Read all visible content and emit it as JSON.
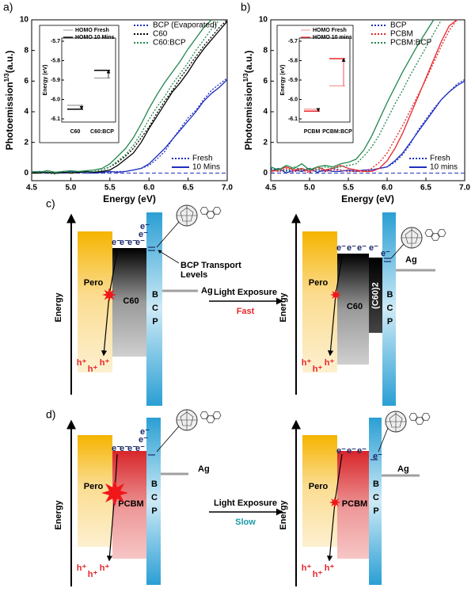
{
  "chart_data": [
    {
      "type": "line",
      "panel": "a)",
      "xlabel": "Energy (eV)",
      "ylabel": "Photoemission",
      "ylabel_sup": "1/3",
      "ylabel_unit": "(a.u.)",
      "x": [
        4.5,
        4.6,
        4.7,
        4.8,
        4.9,
        5.0,
        5.1,
        5.2,
        5.3,
        5.4,
        5.5,
        5.6,
        5.7,
        5.8,
        5.9,
        6.0,
        6.1,
        6.2,
        6.3,
        6.4,
        6.5,
        6.6,
        6.7,
        6.8,
        6.9,
        7.0
      ],
      "xlim": [
        4.5,
        7.0
      ],
      "xticks": [
        4.5,
        {
          "value": 5,
          "label": "5.0"
        },
        5.5,
        {
          "value": 6,
          "label": "6.0"
        },
        6.5,
        {
          "value": 7,
          "label": "7.0"
        }
      ],
      "ylim": [
        -0.5,
        10
      ],
      "yticks": [
        0,
        2,
        4,
        6,
        8,
        10
      ],
      "hline": 0,
      "hline_color": "#1f2fbf",
      "line_styles": {
        "fresh": {
          "label": "Fresh",
          "dash": "2 2"
        },
        "aged": {
          "label": "10 Mins",
          "dash": "none"
        }
      },
      "series": [
        {
          "name": "BCP (Evaporated)",
          "color": "#1f2fbf",
          "fresh": [
            0.1,
            0.05,
            0.15,
            0,
            0.1,
            0.05,
            0,
            0.1,
            0.05,
            0,
            0.05,
            0.1,
            0.1,
            0.2,
            0.3,
            0.5,
            0.9,
            1.4,
            2.2,
            2.9,
            3.6,
            4.1,
            4.8,
            5.4,
            5.8,
            6.2
          ],
          "aged": [
            0.05,
            0.1,
            0,
            0.05,
            0,
            0.1,
            0.05,
            0,
            0,
            0.05,
            0.1,
            0.05,
            0.1,
            0.2,
            0.3,
            0.6,
            1.1,
            1.6,
            2.2,
            2.8,
            3.4,
            4.0,
            4.7,
            5.2,
            5.6,
            6.1
          ]
        },
        {
          "name": "C60",
          "color": "#000000",
          "fresh": [
            0,
            0.05,
            0,
            -0.05,
            0.05,
            0,
            0.05,
            0.05,
            0.1,
            0.2,
            0.4,
            0.7,
            1.1,
            1.6,
            2.3,
            3.0,
            3.9,
            4.7,
            5.4,
            6.2,
            6.9,
            7.6,
            8.3,
            8.9,
            9.5,
            10
          ],
          "aged": [
            0,
            0,
            0.05,
            0,
            0.05,
            0,
            0.05,
            0.1,
            0.05,
            0.1,
            0.2,
            0.5,
            0.9,
            1.3,
            2.0,
            2.9,
            3.7,
            4.5,
            5.3,
            5.9,
            6.6,
            7.4,
            8.1,
            8.7,
            9.3,
            9.9
          ]
        },
        {
          "name": "C60:BCP",
          "color": "#21874b",
          "fresh": [
            0.05,
            0.1,
            0.05,
            0,
            0.1,
            0.05,
            0.1,
            0.05,
            0.1,
            0.2,
            0.4,
            0.8,
            1.2,
            1.8,
            2.6,
            3.5,
            4.3,
            5.0,
            5.8,
            6.5,
            7.2,
            8.0,
            8.7,
            9.4,
            10,
            null
          ],
          "aged": [
            0.1,
            0.05,
            0.15,
            0.05,
            0.1,
            0.15,
            0.1,
            0.15,
            0.2,
            0.3,
            0.6,
            1.1,
            1.6,
            2.3,
            3.2,
            4.2,
            5.1,
            5.9,
            6.6,
            7.3,
            8.1,
            8.8,
            9.5,
            10,
            null,
            null
          ]
        }
      ],
      "inset": {
        "ylabel": "Energy (eV)",
        "ylim": [
          -6.1,
          -5.7
        ],
        "yticks": [
          -5.7,
          -5.8,
          -5.9,
          {
            "value": -6,
            "label": "-6.0"
          },
          -6.1
        ],
        "categories": [
          "C60",
          "C60:BCP"
        ],
        "series": [
          {
            "name": "HOMO Fresh",
            "color": "#aaaaaa",
            "values": [
              -6.03,
              -5.89
            ]
          },
          {
            "name": "HOMO 10 Mins",
            "color": "#000000",
            "values": [
              -6.05,
              -5.85
            ]
          }
        ]
      }
    },
    {
      "type": "line",
      "panel": "b)",
      "xlabel": "Energy (eV)",
      "ylabel": "Photoemission",
      "ylabel_sup": "1/3",
      "ylabel_unit": "(a.u.)",
      "x": [
        4.5,
        4.6,
        4.7,
        4.8,
        4.9,
        5.0,
        5.1,
        5.2,
        5.3,
        5.4,
        5.5,
        5.6,
        5.7,
        5.8,
        5.9,
        6.0,
        6.1,
        6.2,
        6.3,
        6.4,
        6.5,
        6.6,
        6.7,
        6.8,
        6.9,
        7.0
      ],
      "xlim": [
        4.5,
        7.0
      ],
      "xticks": [
        4.5,
        {
          "value": 5,
          "label": "5.0"
        },
        5.5,
        {
          "value": 6,
          "label": "6.0"
        },
        6.5,
        {
          "value": 7,
          "label": "7.0"
        }
      ],
      "ylim": [
        -0.5,
        10
      ],
      "yticks": [
        0,
        2,
        4,
        6,
        8,
        10
      ],
      "hline": 0,
      "hline_color": "#1f2fbf",
      "line_styles": {
        "fresh": {
          "label": "Fresh",
          "dash": "2 2"
        },
        "aged": {
          "label": "10 mins",
          "dash": "none"
        }
      },
      "series": [
        {
          "name": "BCP",
          "color": "#1f2fbf",
          "fresh": [
            0.3,
            0.1,
            0.2,
            0.05,
            0.3,
            0.1,
            0.2,
            0.1,
            0.3,
            0.2,
            0.1,
            0.2,
            0.1,
            0.2,
            0.3,
            0.4,
            0.7,
            1.2,
            1.9,
            2.8,
            3.5,
            4.2,
            4.8,
            5.3,
            5.8,
            6.1
          ],
          "aged": [
            0.1,
            0.3,
            0,
            0.2,
            0.1,
            0.3,
            0.05,
            0.2,
            0.1,
            0.1,
            0.2,
            0.1,
            0.2,
            0.2,
            0.3,
            0.4,
            0.8,
            1.3,
            2.0,
            2.7,
            3.4,
            4.1,
            4.8,
            5.3,
            5.7,
            6.0
          ]
        },
        {
          "name": "PCBM",
          "color": "#e8262a",
          "fresh": [
            0.2,
            0.1,
            0.3,
            0.1,
            0.2,
            0,
            0.3,
            0.1,
            0.2,
            0.2,
            0.1,
            0.1,
            0.1,
            0.3,
            0.7,
            1.3,
            2.2,
            3.1,
            4.1,
            5.1,
            6.1,
            7.2,
            8.3,
            9.3,
            10,
            null
          ],
          "aged": [
            0.1,
            0.2,
            0.4,
            0.2,
            0.3,
            0.1,
            0.4,
            0.2,
            0.3,
            0.5,
            0.3,
            0.2,
            0.1,
            0.1,
            0.3,
            0.8,
            1.6,
            2.6,
            3.8,
            5.0,
            6.2,
            7.4,
            8.6,
            9.6,
            10,
            null
          ]
        },
        {
          "name": "PCBM:BCP",
          "color": "#21874b",
          "fresh": [
            0.2,
            0.3,
            0.1,
            0.4,
            0.2,
            0.3,
            0.2,
            0.4,
            0.3,
            0.4,
            0.5,
            0.6,
            1.1,
            1.7,
            2.5,
            3.5,
            4.5,
            5.4,
            6.4,
            7.3,
            8.2,
            9.1,
            10,
            null,
            null,
            null
          ],
          "aged": [
            0.4,
            0.2,
            0.5,
            0.3,
            0.6,
            0.2,
            0.4,
            0.5,
            0.4,
            0.6,
            0.7,
            0.9,
            1.5,
            2.4,
            3.5,
            4.6,
            5.6,
            6.6,
            7.5,
            8.4,
            9.2,
            10,
            null,
            null,
            null,
            null
          ]
        }
      ],
      "inset": {
        "ylabel": "Energy (eV)",
        "ylim": [
          -6.1,
          -5.7
        ],
        "yticks": [
          -5.7,
          -5.8,
          -5.9,
          {
            "value": -6,
            "label": "-6.0"
          },
          -6.1
        ],
        "categories": [
          "PCBM",
          "PCBM:BCP"
        ],
        "series": [
          {
            "name": "HOMO Fresh",
            "color": "#f4a6a6",
            "values": [
              -6.05,
              -5.93
            ]
          },
          {
            "name": "HOMO 10 mins",
            "color": "#e8262a",
            "values": [
              -6.06,
              -5.79
            ]
          }
        ]
      }
    }
  ],
  "diagrams": {
    "energy": "Energy",
    "pero": "Pero",
    "electron": "e⁻",
    "hole": "h⁺",
    "ag": "Ag",
    "bcp_letters": [
      "B",
      "C",
      "P"
    ],
    "c": {
      "panel": "c)",
      "etl": "C60",
      "dimer": "(C60)2",
      "transport": [
        "BCP Transport",
        "Levels"
      ],
      "exposure": "Light Exposure",
      "speed": "Fast",
      "speed_color": "#e8262a"
    },
    "d": {
      "panel": "d)",
      "etl": "PCBM",
      "exposure": "Light Exposure",
      "speed": "Slow",
      "speed_color": "#1a9aa8"
    }
  }
}
